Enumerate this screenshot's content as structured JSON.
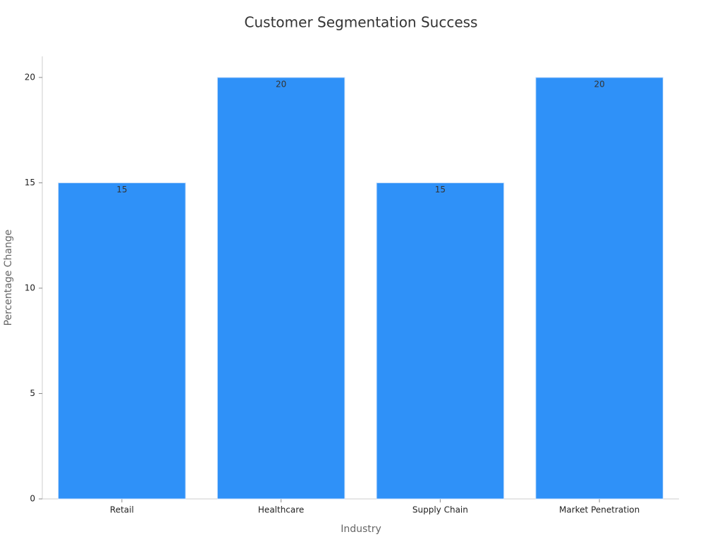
{
  "chart_data": {
    "type": "bar",
    "title": "Customer Segmentation Success",
    "x_label": "Industry",
    "y_label": "Percentage Change",
    "categories": [
      "Retail",
      "Healthcare",
      "Supply Chain",
      "Market Penetration"
    ],
    "values": [
      15,
      20,
      15,
      20
    ],
    "color": "#2f91f8",
    "ylim": [
      0,
      21
    ],
    "yticks": [
      0,
      5,
      10,
      15,
      20
    ],
    "grid": false,
    "data_labels": true
  }
}
